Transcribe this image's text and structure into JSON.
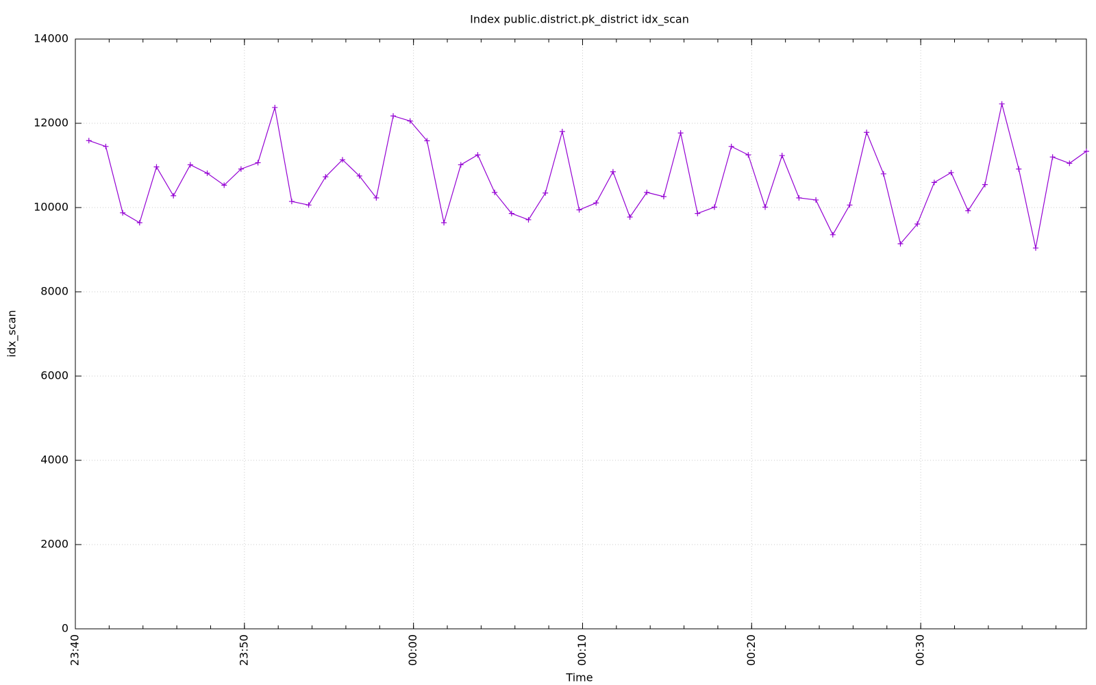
{
  "chart_data": {
    "type": "line",
    "title": "Index public.district.pk_district idx_scan",
    "x_label": "Time",
    "y_label": "idx_scan",
    "x": [
      0.8,
      1.8,
      2.8,
      3.8,
      4.8,
      5.8,
      6.8,
      7.8,
      8.8,
      9.8,
      10.8,
      11.8,
      12.8,
      13.8,
      14.8,
      15.8,
      16.8,
      17.8,
      18.8,
      19.8,
      20.8,
      21.8,
      22.8,
      23.8,
      24.8,
      25.8,
      26.8,
      27.8,
      28.8,
      29.8,
      30.8,
      31.8,
      32.8,
      33.8,
      34.8,
      35.8,
      36.8,
      37.8,
      38.8,
      39.8,
      40.8,
      41.8,
      42.8,
      43.8,
      44.8,
      45.8,
      46.8,
      47.8,
      48.8,
      49.8,
      50.8,
      51.8,
      52.8,
      53.8,
      54.8,
      55.8,
      56.8,
      57.8,
      58.8,
      59.8
    ],
    "series": [
      {
        "color": "#9400d3",
        "markers": "plus",
        "values": [
          11590,
          11450,
          9875,
          9640,
          10965,
          10280,
          11015,
          10815,
          10530,
          10915,
          11065,
          12375,
          10145,
          10060,
          10730,
          11135,
          10750,
          10230,
          12175,
          12055,
          11585,
          9640,
          11015,
          11250,
          10360,
          9860,
          9710,
          10345,
          11805,
          9945,
          10110,
          10850,
          9775,
          10360,
          10260,
          11770,
          9860,
          10010,
          11450,
          11250,
          10010,
          11235,
          10230,
          10180,
          9355,
          10060,
          11785,
          10800,
          9140,
          9610,
          10595,
          10830,
          9925,
          10545,
          12460,
          10915,
          9040,
          11200,
          11050,
          11335
        ]
      }
    ],
    "xlim": [
      0,
      59.8
    ],
    "xticks": [
      {
        "value": 0,
        "label": "23:40"
      },
      {
        "value": 10,
        "label": "23:50"
      },
      {
        "value": 20,
        "label": "00:00"
      },
      {
        "value": 30,
        "label": "00:10"
      },
      {
        "value": 40,
        "label": "00:20"
      },
      {
        "value": 50,
        "label": "00:30"
      }
    ],
    "ylim": [
      0,
      14000
    ],
    "yticks": [
      0,
      2000,
      4000,
      6000,
      8000,
      10000,
      12000,
      14000
    ],
    "grid": true
  }
}
